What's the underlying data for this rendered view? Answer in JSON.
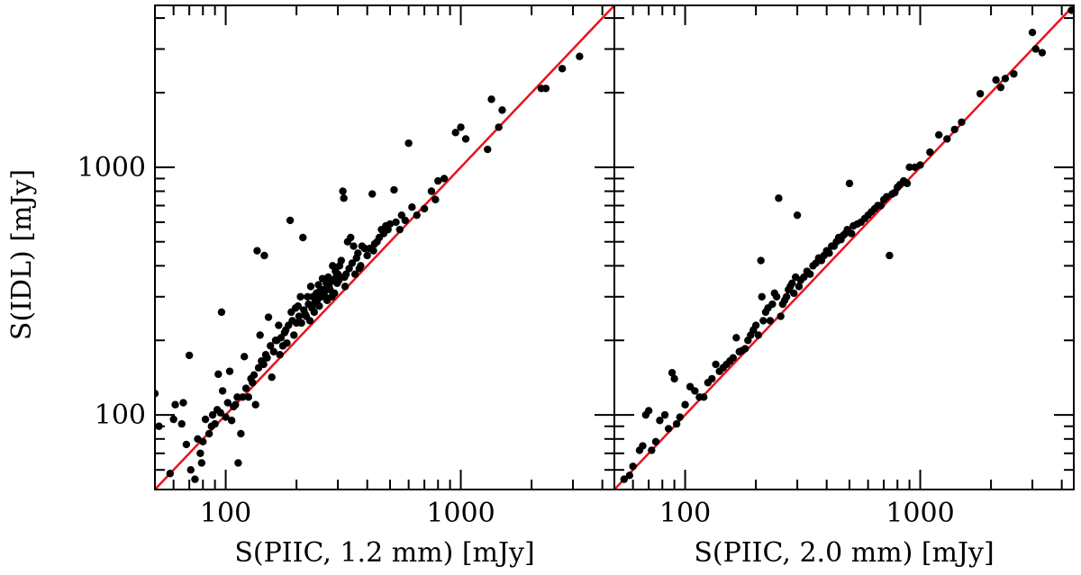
{
  "chart_data": [
    {
      "type": "scatter",
      "scale": "log-log",
      "xlabel": "S(PIIC, 1.2 mm) [mJy]",
      "ylabel": "S(IDL) [mJy]",
      "xlim": [
        50,
        4500
      ],
      "ylim": [
        50,
        4500
      ],
      "x_tick_labels": [
        {
          "value": 100,
          "label": "100"
        },
        {
          "value": 1000,
          "label": "1000"
        }
      ],
      "y_tick_labels": [
        {
          "value": 100,
          "label": "100"
        },
        {
          "value": 1000,
          "label": "1000"
        }
      ],
      "reference_line": {
        "name": "y = x",
        "color": "#e8141b"
      },
      "marker_color": "#000000",
      "points": [
        [
          50,
          122
        ],
        [
          52,
          90
        ],
        [
          58,
          58
        ],
        [
          60,
          96
        ],
        [
          61,
          110
        ],
        [
          65,
          92
        ],
        [
          66,
          112
        ],
        [
          68,
          76
        ],
        [
          70,
          174
        ],
        [
          71,
          60
        ],
        [
          74,
          55
        ],
        [
          76,
          80
        ],
        [
          78,
          70
        ],
        [
          79,
          64
        ],
        [
          80,
          78
        ],
        [
          82,
          96
        ],
        [
          85,
          84
        ],
        [
          87,
          90
        ],
        [
          88,
          100
        ],
        [
          90,
          92
        ],
        [
          92,
          105
        ],
        [
          93,
          146
        ],
        [
          95,
          102
        ],
        [
          96,
          260
        ],
        [
          97,
          125
        ],
        [
          100,
          98
        ],
        [
          102,
          112
        ],
        [
          104,
          150
        ],
        [
          106,
          95
        ],
        [
          108,
          108
        ],
        [
          110,
          110
        ],
        [
          112,
          118
        ],
        [
          113,
          64
        ],
        [
          116,
          84
        ],
        [
          118,
          118
        ],
        [
          120,
          172
        ],
        [
          122,
          128
        ],
        [
          125,
          118
        ],
        [
          128,
          140
        ],
        [
          130,
          135
        ],
        [
          132,
          145
        ],
        [
          134,
          110
        ],
        [
          136,
          460
        ],
        [
          138,
          155
        ],
        [
          140,
          210
        ],
        [
          142,
          165
        ],
        [
          145,
          160
        ],
        [
          146,
          440
        ],
        [
          148,
          175
        ],
        [
          150,
          170
        ],
        [
          152,
          248
        ],
        [
          155,
          190
        ],
        [
          157,
          142
        ],
        [
          160,
          180
        ],
        [
          163,
          200
        ],
        [
          165,
          200
        ],
        [
          168,
          230
        ],
        [
          170,
          175
        ],
        [
          172,
          205
        ],
        [
          175,
          190
        ],
        [
          178,
          215
        ],
        [
          180,
          220
        ],
        [
          182,
          195
        ],
        [
          185,
          230
        ],
        [
          188,
          610
        ],
        [
          190,
          260
        ],
        [
          192,
          240
        ],
        [
          195,
          210
        ],
        [
          198,
          270
        ],
        [
          200,
          235
        ],
        [
          203,
          275
        ],
        [
          205,
          250
        ],
        [
          208,
          300
        ],
        [
          210,
          235
        ],
        [
          213,
          520
        ],
        [
          215,
          265
        ],
        [
          218,
          255
        ],
        [
          220,
          250
        ],
        [
          223,
          300
        ],
        [
          225,
          280
        ],
        [
          228,
          240
        ],
        [
          230,
          330
        ],
        [
          233,
          270
        ],
        [
          235,
          300
        ],
        [
          238,
          260
        ],
        [
          240,
          285
        ],
        [
          243,
          310
        ],
        [
          245,
          290
        ],
        [
          248,
          335
        ],
        [
          250,
          275
        ],
        [
          253,
          320
        ],
        [
          255,
          300
        ],
        [
          258,
          355
        ],
        [
          260,
          320
        ],
        [
          263,
          315
        ],
        [
          265,
          300
        ],
        [
          268,
          340
        ],
        [
          270,
          290
        ],
        [
          273,
          360
        ],
        [
          275,
          330
        ],
        [
          278,
          320
        ],
        [
          280,
          345
        ],
        [
          283,
          300
        ],
        [
          285,
          400
        ],
        [
          288,
          350
        ],
        [
          290,
          310
        ],
        [
          293,
          380
        ],
        [
          295,
          360
        ],
        [
          298,
          340
        ],
        [
          300,
          370
        ],
        [
          303,
          350
        ],
        [
          305,
          400
        ],
        [
          308,
          360
        ],
        [
          310,
          420
        ],
        [
          315,
          800
        ],
        [
          318,
          750
        ],
        [
          320,
          360
        ],
        [
          322,
          330
        ],
        [
          325,
          370
        ],
        [
          330,
          500
        ],
        [
          335,
          390
        ],
        [
          340,
          520
        ],
        [
          345,
          410
        ],
        [
          350,
          480
        ],
        [
          355,
          370
        ],
        [
          360,
          430
        ],
        [
          365,
          450
        ],
        [
          370,
          390
        ],
        [
          375,
          400
        ],
        [
          380,
          480
        ],
        [
          390,
          470
        ],
        [
          400,
          440
        ],
        [
          410,
          470
        ],
        [
          420,
          780
        ],
        [
          425,
          460
        ],
        [
          430,
          490
        ],
        [
          440,
          500
        ],
        [
          450,
          520
        ],
        [
          460,
          560
        ],
        [
          470,
          540
        ],
        [
          480,
          580
        ],
        [
          490,
          560
        ],
        [
          500,
          590
        ],
        [
          520,
          810
        ],
        [
          530,
          600
        ],
        [
          550,
          560
        ],
        [
          560,
          640
        ],
        [
          580,
          610
        ],
        [
          600,
          1250
        ],
        [
          620,
          690
        ],
        [
          650,
          640
        ],
        [
          700,
          680
        ],
        [
          750,
          800
        ],
        [
          780,
          740
        ],
        [
          800,
          880
        ],
        [
          850,
          900
        ],
        [
          950,
          1380
        ],
        [
          1000,
          1450
        ],
        [
          1050,
          1300
        ],
        [
          1300,
          1180
        ],
        [
          1350,
          1880
        ],
        [
          1450,
          1450
        ],
        [
          1500,
          1700
        ],
        [
          2200,
          2080
        ],
        [
          2300,
          2080
        ],
        [
          2700,
          2500
        ],
        [
          3200,
          2800
        ]
      ]
    },
    {
      "type": "scatter",
      "scale": "log-log",
      "xlabel": "S(PIIC, 2.0 mm) [mJy]",
      "ylabel": "",
      "xlim": [
        50,
        4500
      ],
      "ylim": [
        50,
        4500
      ],
      "x_tick_labels": [
        {
          "value": 100,
          "label": "100"
        },
        {
          "value": 1000,
          "label": "1000"
        }
      ],
      "y_tick_labels": [],
      "reference_line": {
        "name": "y = x",
        "color": "#e8141b"
      },
      "marker_color": "#000000",
      "points": [
        [
          55,
          55
        ],
        [
          58,
          57
        ],
        [
          60,
          62
        ],
        [
          64,
          72
        ],
        [
          66,
          75
        ],
        [
          68,
          100
        ],
        [
          70,
          104
        ],
        [
          72,
          72
        ],
        [
          75,
          78
        ],
        [
          78,
          95
        ],
        [
          82,
          100
        ],
        [
          85,
          88
        ],
        [
          88,
          148
        ],
        [
          90,
          140
        ],
        [
          92,
          92
        ],
        [
          95,
          98
        ],
        [
          100,
          110
        ],
        [
          105,
          130
        ],
        [
          110,
          125
        ],
        [
          115,
          118
        ],
        [
          120,
          118
        ],
        [
          125,
          135
        ],
        [
          130,
          140
        ],
        [
          135,
          160
        ],
        [
          140,
          150
        ],
        [
          145,
          155
        ],
        [
          150,
          160
        ],
        [
          155,
          165
        ],
        [
          160,
          170
        ],
        [
          165,
          205
        ],
        [
          170,
          180
        ],
        [
          175,
          182
        ],
        [
          180,
          185
        ],
        [
          185,
          200
        ],
        [
          190,
          210
        ],
        [
          195,
          220
        ],
        [
          200,
          230
        ],
        [
          205,
          210
        ],
        [
          210,
          420
        ],
        [
          212,
          300
        ],
        [
          215,
          240
        ],
        [
          220,
          260
        ],
        [
          225,
          270
        ],
        [
          230,
          240
        ],
        [
          235,
          280
        ],
        [
          240,
          310
        ],
        [
          245,
          300
        ],
        [
          250,
          750
        ],
        [
          255,
          250
        ],
        [
          260,
          280
        ],
        [
          265,
          290
        ],
        [
          270,
          300
        ],
        [
          275,
          320
        ],
        [
          280,
          330
        ],
        [
          285,
          340
        ],
        [
          290,
          310
        ],
        [
          295,
          360
        ],
        [
          300,
          640
        ],
        [
          305,
          330
        ],
        [
          310,
          350
        ],
        [
          320,
          360
        ],
        [
          330,
          380
        ],
        [
          340,
          370
        ],
        [
          350,
          400
        ],
        [
          360,
          410
        ],
        [
          370,
          430
        ],
        [
          380,
          420
        ],
        [
          390,
          440
        ],
        [
          400,
          460
        ],
        [
          410,
          450
        ],
        [
          420,
          480
        ],
        [
          430,
          480
        ],
        [
          440,
          500
        ],
        [
          450,
          520
        ],
        [
          460,
          510
        ],
        [
          470,
          530
        ],
        [
          480,
          540
        ],
        [
          490,
          560
        ],
        [
          500,
          860
        ],
        [
          510,
          540
        ],
        [
          520,
          580
        ],
        [
          540,
          590
        ],
        [
          560,
          600
        ],
        [
          580,
          620
        ],
        [
          600,
          640
        ],
        [
          620,
          660
        ],
        [
          640,
          680
        ],
        [
          660,
          700
        ],
        [
          680,
          700
        ],
        [
          700,
          740
        ],
        [
          720,
          760
        ],
        [
          740,
          440
        ],
        [
          760,
          780
        ],
        [
          780,
          790
        ],
        [
          800,
          830
        ],
        [
          820,
          850
        ],
        [
          850,
          880
        ],
        [
          880,
          860
        ],
        [
          900,
          1000
        ],
        [
          950,
          1000
        ],
        [
          1000,
          1020
        ],
        [
          1100,
          1150
        ],
        [
          1200,
          1350
        ],
        [
          1300,
          1300
        ],
        [
          1400,
          1420
        ],
        [
          1500,
          1520
        ],
        [
          1800,
          1980
        ],
        [
          2100,
          2250
        ],
        [
          2200,
          2100
        ],
        [
          2300,
          2280
        ],
        [
          2500,
          2380
        ],
        [
          3000,
          3500
        ],
        [
          3100,
          3000
        ],
        [
          3300,
          2900
        ],
        [
          4400,
          4300
        ]
      ]
    }
  ]
}
